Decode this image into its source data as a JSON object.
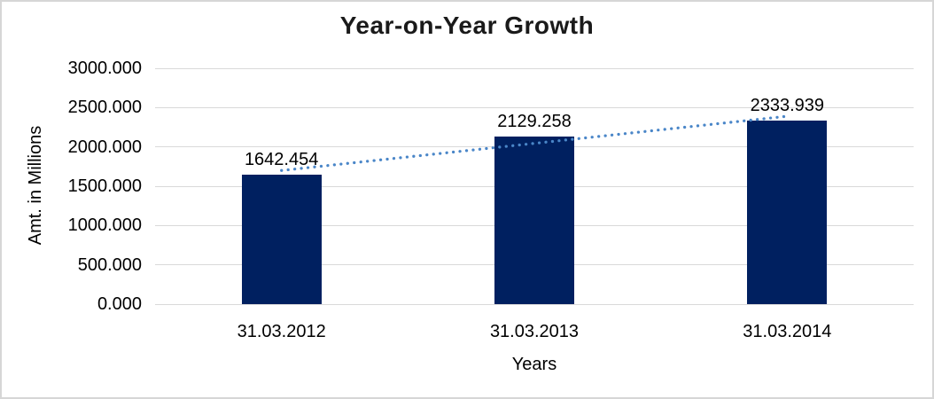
{
  "chart_data": {
    "type": "bar",
    "title": "Year-on-Year Growth",
    "xlabel": "Years",
    "ylabel": "Amt. in Millions",
    "categories": [
      "31.03.2012",
      "31.03.2013",
      "31.03.2014"
    ],
    "values": [
      1642.454,
      2129.258,
      2333.939
    ],
    "value_labels": [
      "1642.454",
      "2129.258",
      "2333.939"
    ],
    "ylim": [
      0,
      3000
    ],
    "ytick_labels": [
      "3000.000",
      "2500.000",
      "2000.000",
      "1500.000",
      "1000.000",
      "500.000",
      "0.000"
    ],
    "grid": "horizontal",
    "legend": "none",
    "bar_color": "#002060",
    "gridline_color": "#d9d9d9",
    "trendline": {
      "type": "linear",
      "style": "dotted",
      "color": "#4a86c8",
      "start_value": 1700,
      "end_value": 2390
    }
  }
}
